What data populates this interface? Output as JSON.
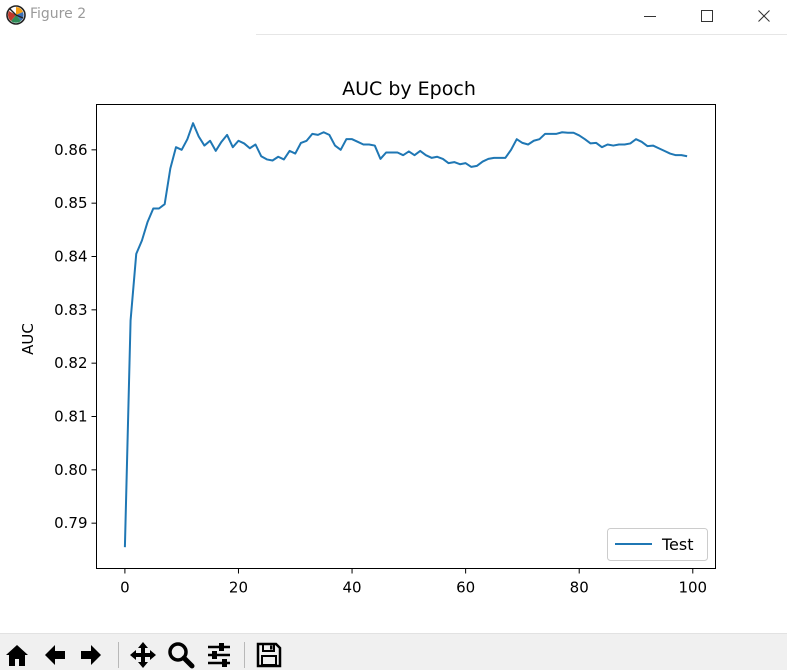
{
  "window": {
    "title": "Figure 2",
    "icon": "matplotlib-logo-icon",
    "controls": [
      "minimize-icon",
      "maximize-icon",
      "close-icon"
    ]
  },
  "toolbar": {
    "tools": [
      "home-icon",
      "back-arrow-icon",
      "forward-arrow-icon",
      "pan-icon",
      "zoom-icon",
      "configure-subplots-icon",
      "save-icon"
    ]
  },
  "chart_data": {
    "type": "line",
    "title": "AUC by Epoch",
    "xlabel": "",
    "ylabel": "AUC",
    "xlim": [
      -5,
      104
    ],
    "ylim": [
      0.7815,
      0.8685
    ],
    "xticks": [
      0,
      20,
      40,
      60,
      80,
      100
    ],
    "xtick_labels": [
      "0",
      "20",
      "40",
      "60",
      "80",
      "100"
    ],
    "yticks": [
      0.79,
      0.8,
      0.81,
      0.82,
      0.83,
      0.84,
      0.85,
      0.86
    ],
    "ytick_labels": [
      "0.79",
      "0.80",
      "0.81",
      "0.82",
      "0.83",
      "0.84",
      "0.85",
      "0.86"
    ],
    "grid": false,
    "legend": "lower-right",
    "series": [
      {
        "name": "Test",
        "color": "#1f77b4",
        "x": [
          0,
          1,
          2,
          3,
          4,
          5,
          6,
          7,
          8,
          9,
          10,
          11,
          12,
          13,
          14,
          15,
          16,
          17,
          18,
          19,
          20,
          21,
          22,
          23,
          24,
          25,
          26,
          27,
          28,
          29,
          30,
          31,
          32,
          33,
          34,
          35,
          36,
          37,
          38,
          39,
          40,
          41,
          42,
          43,
          44,
          45,
          46,
          47,
          48,
          49,
          50,
          51,
          52,
          53,
          54,
          55,
          56,
          57,
          58,
          59,
          60,
          61,
          62,
          63,
          64,
          65,
          66,
          67,
          68,
          69,
          70,
          71,
          72,
          73,
          74,
          75,
          76,
          77,
          78,
          79,
          80,
          81,
          82,
          83,
          84,
          85,
          86,
          87,
          88,
          89,
          90,
          91,
          92,
          93,
          94,
          95,
          96,
          97,
          98,
          99
        ],
        "values": [
          0.7855,
          0.828,
          0.8405,
          0.843,
          0.8465,
          0.849,
          0.849,
          0.8498,
          0.8565,
          0.8605,
          0.86,
          0.862,
          0.865,
          0.8625,
          0.8608,
          0.8617,
          0.8598,
          0.8615,
          0.8628,
          0.8605,
          0.8617,
          0.8612,
          0.8603,
          0.861,
          0.8588,
          0.8582,
          0.858,
          0.8587,
          0.8582,
          0.8598,
          0.8593,
          0.8613,
          0.8617,
          0.863,
          0.8628,
          0.8633,
          0.8628,
          0.8608,
          0.86,
          0.862,
          0.862,
          0.8615,
          0.861,
          0.861,
          0.8608,
          0.8583,
          0.8595,
          0.8595,
          0.8595,
          0.859,
          0.8597,
          0.859,
          0.8598,
          0.859,
          0.8585,
          0.8587,
          0.8583,
          0.8575,
          0.8577,
          0.8573,
          0.8575,
          0.8568,
          0.857,
          0.8578,
          0.8583,
          0.8585,
          0.8585,
          0.8585,
          0.86,
          0.862,
          0.8613,
          0.861,
          0.8617,
          0.862,
          0.863,
          0.863,
          0.863,
          0.8633,
          0.8632,
          0.8632,
          0.8627,
          0.862,
          0.8612,
          0.8613,
          0.8605,
          0.861,
          0.8608,
          0.861,
          0.861,
          0.8612,
          0.862,
          0.8615,
          0.8607,
          0.8608,
          0.8603,
          0.8598,
          0.8593,
          0.859,
          0.859,
          0.8588
        ]
      }
    ]
  }
}
